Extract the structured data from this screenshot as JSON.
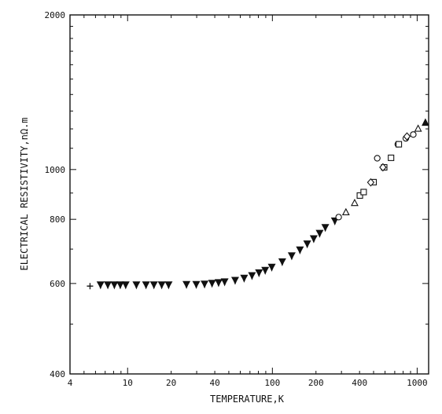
{
  "chart_data": {
    "type": "scatter",
    "xscale": "log",
    "yscale": "log",
    "xlim": [
      4,
      1200
    ],
    "ylim": [
      400,
      2000
    ],
    "xlabel": "TEMPERATURE,K",
    "ylabel": "ELECTRICAL RESISTIVITY,nΩ.m",
    "xticklabels": [
      "4",
      "10",
      "20",
      "40",
      "100",
      "200",
      "400",
      "1000"
    ],
    "yticklabels": [
      "400",
      "600",
      "800",
      "1000",
      "2000"
    ],
    "grid": false,
    "series": [
      {
        "marker": "plus",
        "x": [
          5.5
        ],
        "y": [
          593
        ]
      },
      {
        "marker": "filled-star",
        "x": [
          6.5,
          7.3,
          8.1,
          8.9,
          9.7,
          11.5,
          13.4,
          15.2,
          17.2,
          19.2,
          25.5,
          29.8,
          34.0,
          38.3,
          42.5,
          46.8,
          55.3,
          63.8,
          72.3,
          80.8,
          89.2,
          99.0,
          117,
          136,
          155,
          174,
          193,
          212,
          232,
          270
        ],
        "y": [
          597,
          597,
          597,
          597,
          597,
          597,
          597,
          597,
          597,
          597,
          598,
          598,
          599,
          601,
          603,
          605,
          609,
          615,
          622,
          630,
          637,
          646,
          662,
          680,
          698,
          717,
          734,
          752,
          772,
          795
        ]
      },
      {
        "marker": "open-circle",
        "x": [
          287,
          530,
          735,
          835,
          940
        ],
        "y": [
          808,
          1052,
          1120,
          1150,
          1170
        ]
      },
      {
        "marker": "open-square",
        "x": [
          402,
          427,
          500,
          592,
          660,
          747
        ],
        "y": [
          890,
          904,
          945,
          1010,
          1054,
          1120
        ]
      },
      {
        "marker": "open-diamond",
        "x": [
          478,
          580,
          850
        ],
        "y": [
          944,
          1010,
          1160
        ]
      },
      {
        "marker": "open-triangle",
        "x": [
          322,
          370,
          1015
        ],
        "y": [
          825,
          860,
          1200
        ]
      },
      {
        "marker": "filled-triangle",
        "x": [
          1140
        ],
        "y": [
          1232
        ]
      }
    ]
  }
}
